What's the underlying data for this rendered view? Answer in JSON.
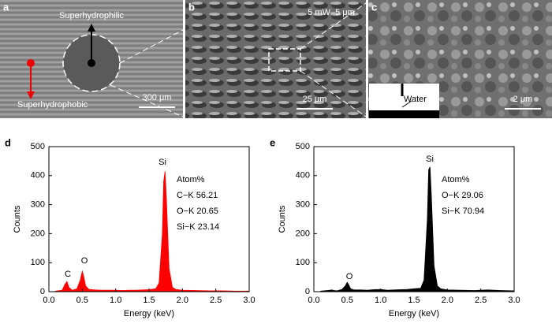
{
  "panels": {
    "a": {
      "letter": "a",
      "top_label": "Superhydrophilic",
      "bottom_label": "Superhydrophobic",
      "scale": "300 μm"
    },
    "b": {
      "letter": "b",
      "condition": "5 mW–5 μm",
      "scale": "25 μm"
    },
    "c": {
      "letter": "c",
      "inset": "Water",
      "scale": "2 μm"
    }
  },
  "chart_data": [
    {
      "type": "area",
      "letter": "d",
      "xlabel": "Energy (keV)",
      "ylabel": "Counts",
      "color": "#ff0000",
      "x": [
        0.1,
        0.2,
        0.24,
        0.27,
        0.3,
        0.35,
        0.42,
        0.47,
        0.5,
        0.52,
        0.55,
        0.6,
        0.7,
        0.8,
        0.9,
        1.0,
        1.1,
        1.2,
        1.3,
        1.4,
        1.5,
        1.6,
        1.65,
        1.7,
        1.72,
        1.74,
        1.76,
        1.8,
        1.85,
        1.9,
        2.0,
        2.2,
        2.4,
        2.6,
        2.8,
        3.0
      ],
      "values": [
        2,
        5,
        25,
        35,
        15,
        5,
        10,
        40,
        70,
        55,
        20,
        8,
        6,
        5,
        5,
        5,
        4,
        5,
        5,
        6,
        7,
        10,
        30,
        200,
        380,
        415,
        320,
        80,
        15,
        8,
        5,
        4,
        3,
        3,
        2,
        2
      ],
      "annotations": [
        "C",
        "O",
        "Si",
        "Atom%",
        "C−K 56.21",
        "O−K 20.65",
        "Si−K 23.14"
      ],
      "xlim": [
        0,
        3.0
      ],
      "ylim": [
        0,
        500
      ],
      "xticks": [
        {
          "value": 0,
          "label": "0.0"
        },
        {
          "value": 0.5,
          "label": "0.5"
        },
        {
          "value": 1,
          "label": "1.0"
        },
        {
          "value": 1.5,
          "label": "1.5"
        },
        {
          "value": 2,
          "label": "2.0"
        },
        {
          "value": 2.5,
          "label": "2.5"
        },
        {
          "value": 3,
          "label": "3.0"
        }
      ],
      "yticks": [
        0,
        100,
        200,
        300,
        400,
        500
      ]
    },
    {
      "type": "area",
      "letter": "e",
      "xlabel": "Energy (keV)",
      "ylabel": "Counts",
      "color": "#000000",
      "x": [
        0.1,
        0.2,
        0.24,
        0.27,
        0.3,
        0.35,
        0.42,
        0.47,
        0.5,
        0.52,
        0.55,
        0.6,
        0.7,
        0.8,
        0.9,
        1.0,
        1.1,
        1.2,
        1.3,
        1.4,
        1.5,
        1.6,
        1.65,
        1.7,
        1.72,
        1.74,
        1.76,
        1.8,
        1.85,
        1.9,
        2.0,
        2.2,
        2.4,
        2.6,
        2.8,
        3.0
      ],
      "values": [
        2,
        4,
        5,
        6,
        4,
        3,
        8,
        20,
        32,
        25,
        10,
        6,
        6,
        5,
        7,
        8,
        5,
        6,
        7,
        8,
        10,
        12,
        40,
        250,
        420,
        430,
        330,
        90,
        20,
        10,
        6,
        5,
        4,
        6,
        4,
        3
      ],
      "annotations": [
        "O",
        "Si",
        "Atom%",
        "O−K 29.06",
        "Si−K 70.94"
      ],
      "xlim": [
        0,
        3.0
      ],
      "ylim": [
        0,
        500
      ],
      "xticks": [
        {
          "value": 0,
          "label": "0.0"
        },
        {
          "value": 0.5,
          "label": "0.5"
        },
        {
          "value": 1,
          "label": "1.0"
        },
        {
          "value": 1.5,
          "label": "1.5"
        },
        {
          "value": 2,
          "label": "2.0"
        },
        {
          "value": 2.5,
          "label": "2.5"
        },
        {
          "value": 3,
          "label": "3.0"
        }
      ],
      "yticks": [
        0,
        100,
        200,
        300,
        400,
        500
      ]
    }
  ]
}
